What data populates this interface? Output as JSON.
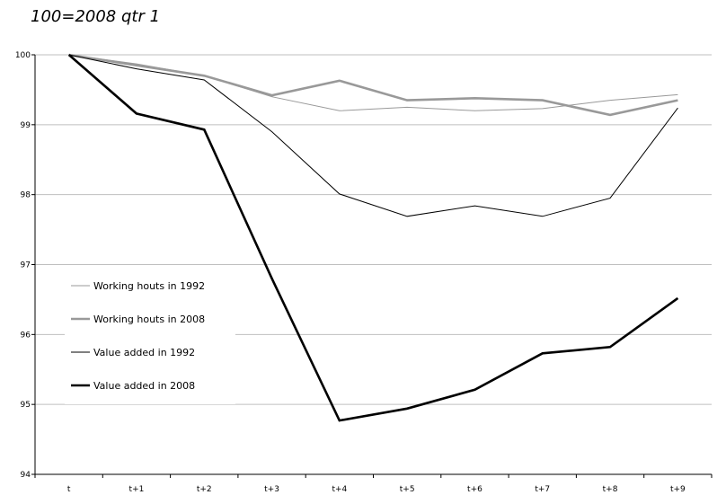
{
  "chart_data": {
    "type": "line",
    "subtitle": "100=2008 qtr 1",
    "categories": [
      "t",
      "t+1",
      "t+2",
      "t+3",
      "t+4",
      "t+5",
      "t+6",
      "t+7",
      "t+8",
      "t+9"
    ],
    "ylim": [
      94,
      100
    ],
    "yticks": [
      "94",
      "95",
      "96",
      "97",
      "98",
      "99",
      "100"
    ],
    "grid": "horizontal",
    "legend_position": "left, lower middle",
    "series": [
      {
        "name": "Working houts in 1992",
        "color": "#999999",
        "style": "thin",
        "values": [
          100,
          99.87,
          99.7,
          99.4,
          99.2,
          99.25,
          99.2,
          99.23,
          99.35,
          99.43
        ]
      },
      {
        "name": "Working houts in 2008",
        "color": "#999999",
        "style": "thick",
        "values": [
          100,
          99.85,
          99.7,
          99.42,
          99.63,
          99.35,
          99.38,
          99.35,
          99.14,
          99.35
        ]
      },
      {
        "name": "Value added in 1992",
        "color": "#000000",
        "style": "thin",
        "values": [
          100,
          99.8,
          99.64,
          98.9,
          98.01,
          97.69,
          97.84,
          97.69,
          97.95,
          99.24
        ]
      },
      {
        "name": "Value added in 2008",
        "color": "#000000",
        "style": "thick",
        "values": [
          100,
          99.16,
          98.93,
          96.8,
          94.77,
          94.94,
          95.21,
          95.73,
          95.82,
          96.52
        ]
      }
    ]
  }
}
